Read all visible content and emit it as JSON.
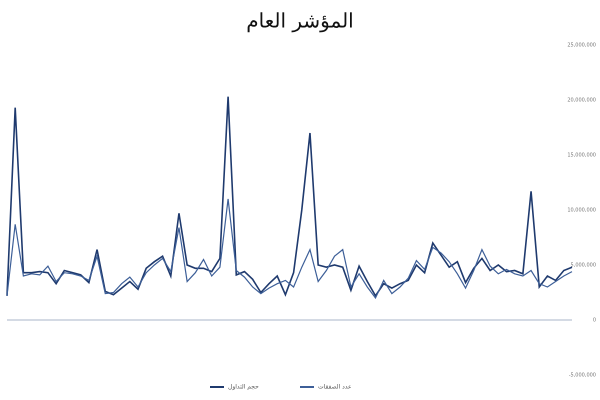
{
  "chart_data": {
    "type": "line",
    "title": "المؤشر العام",
    "categories": [
      null,
      null,
      null,
      null,
      null,
      null,
      null,
      null,
      null,
      null,
      null,
      null,
      null,
      null,
      null,
      null,
      null,
      null,
      null,
      null,
      null,
      null,
      null,
      null,
      null,
      null,
      null,
      null,
      null,
      null,
      null,
      null,
      null,
      null,
      null,
      null,
      null,
      null,
      null,
      null,
      null,
      null,
      null,
      null,
      null,
      null,
      null,
      null,
      null,
      null,
      null,
      null,
      null,
      null,
      null,
      null,
      null,
      null,
      null,
      null,
      null,
      null,
      null,
      null,
      null,
      null,
      null,
      null,
      null,
      null
    ],
    "series": [
      {
        "name": "حجم التداول",
        "color": "#1f3a6e",
        "values": [
          2200000,
          19300000,
          4300000,
          4300000,
          4400000,
          4300000,
          3300000,
          4500000,
          4300000,
          4100000,
          3400000,
          6400000,
          2600000,
          2300000,
          2900000,
          3500000,
          2800000,
          4700000,
          5300000,
          5800000,
          4000000,
          9700000,
          5000000,
          4700000,
          4700000,
          4400000,
          5600000,
          20300000,
          4100000,
          4400000,
          3700000,
          2500000,
          3300000,
          4000000,
          2300000,
          4300000,
          10000000,
          17000000,
          5000000,
          4800000,
          5000000,
          4800000,
          2700000,
          4900000,
          3500000,
          2200000,
          3300000,
          2900000,
          3300000,
          3600000,
          5000000,
          4300000,
          7000000,
          5900000,
          4800000,
          5300000,
          3400000,
          4700000,
          5600000,
          4500000,
          5000000,
          4400000,
          4500000,
          4200000,
          11700000,
          3000000,
          4000000,
          3600000,
          4500000,
          4800000
        ]
      },
      {
        "name": "عدد الصفقات",
        "color": "#3d5f98",
        "values": [
          2200000,
          8700000,
          4000000,
          4200000,
          4100000,
          4900000,
          3500000,
          4300000,
          4200000,
          4000000,
          3600000,
          5800000,
          2400000,
          2500000,
          3300000,
          3900000,
          3000000,
          4300000,
          5000000,
          5600000,
          4400000,
          8400000,
          3500000,
          4300000,
          5500000,
          4000000,
          4800000,
          11000000,
          4500000,
          3900000,
          3000000,
          2400000,
          2900000,
          3300000,
          3600000,
          3000000,
          4800000,
          6400000,
          3500000,
          4500000,
          5800000,
          6400000,
          3000000,
          4200000,
          3000000,
          2000000,
          3600000,
          2400000,
          3000000,
          3800000,
          5400000,
          4600000,
          6600000,
          6100000,
          5300000,
          4200000,
          2900000,
          4500000,
          6400000,
          4900000,
          4200000,
          4600000,
          4200000,
          4000000,
          4500000,
          3300000,
          3000000,
          3500000,
          4000000,
          4400000
        ]
      }
    ],
    "ylim": [
      -5000000,
      25000000
    ],
    "yticks": [
      {
        "value": -5000000,
        "label": "-5,000,000"
      },
      0,
      {
        "value": 5000000,
        "label": "5,000,000"
      },
      {
        "value": 10000000,
        "label": "10,000,000"
      },
      {
        "value": 15000000,
        "label": "15,000,000"
      },
      {
        "value": 20000000,
        "label": "20,000,000"
      },
      {
        "value": 25000000,
        "label": "25,000,000"
      }
    ],
    "grid": false,
    "legend": "bottom"
  }
}
